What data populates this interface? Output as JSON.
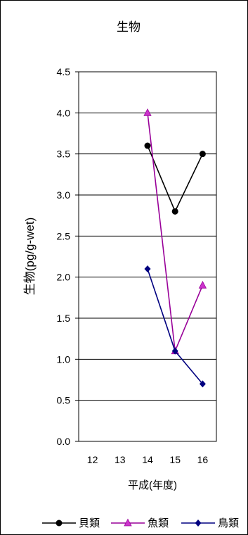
{
  "chart_data": {
    "type": "line",
    "title": "生物",
    "xlabel": "平成(年度)",
    "ylabel": "生物(pg/g-wet)",
    "categories": [
      "12",
      "13",
      "14",
      "15",
      "16"
    ],
    "ylim": [
      0,
      4.5
    ],
    "yticks": [
      "0.0",
      "0.5",
      "1.0",
      "1.5",
      "2.0",
      "2.5",
      "3.0",
      "3.5",
      "4.0",
      "4.5"
    ],
    "grid": true,
    "legend_position": "bottom",
    "series": [
      {
        "name": "貝類",
        "values": [
          null,
          null,
          3.6,
          2.8,
          3.5
        ],
        "color": "#000000",
        "marker": "circle"
      },
      {
        "name": "魚類",
        "values": [
          null,
          null,
          4.0,
          1.1,
          1.9
        ],
        "color": "#990099",
        "marker": "triangle"
      },
      {
        "name": "鳥類",
        "values": [
          null,
          null,
          2.1,
          1.1,
          0.7
        ],
        "color": "#000080",
        "marker": "diamond"
      }
    ]
  }
}
